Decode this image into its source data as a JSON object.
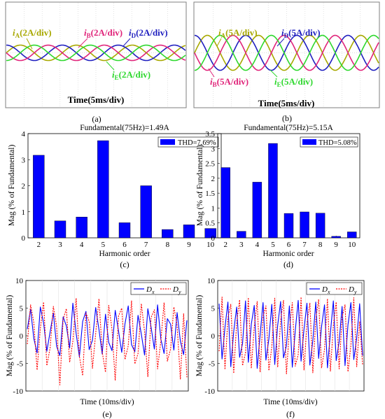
{
  "panels": {
    "a": {
      "caption": "(a)",
      "time_label": "Time(5ms/div)",
      "labels": [
        {
          "sym": "i",
          "sub": "A",
          "unit": "(2A/div)",
          "color": "#a8a800"
        },
        {
          "sym": "i",
          "sub": "B",
          "unit": "(2A/div)",
          "color": "#e0247a"
        },
        {
          "sym": "i",
          "sub": "D",
          "unit": "(2A/div)",
          "color": "#1f1fbf"
        },
        {
          "sym": "i",
          "sub": "E",
          "unit": "(2A/div)",
          "color": "#2ed82e"
        }
      ]
    },
    "b": {
      "caption": "(b)",
      "time_label": "Time(5ms/div)",
      "labels": [
        {
          "sym": "i",
          "sub": "A",
          "unit": "(5A/div)",
          "color": "#a8a800"
        },
        {
          "sym": "i",
          "sub": "D",
          "unit": "(5A/div)",
          "color": "#1f1fbf"
        },
        {
          "sym": "i",
          "sub": "B",
          "unit": "(5A/div)",
          "color": "#e0247a"
        },
        {
          "sym": "i",
          "sub": "E",
          "unit": "(5A/div)",
          "color": "#2ed82e"
        }
      ]
    },
    "c": {
      "caption": "(c)"
    },
    "d": {
      "caption": "(d)"
    },
    "e": {
      "caption": "(e)"
    },
    "f": {
      "caption": "(f)"
    }
  },
  "colors": {
    "bar": "#0000ff",
    "dx": "#0000ff",
    "dy": "#ff0000"
  },
  "chart_data": [
    {
      "id": "c",
      "type": "bar",
      "title": "Fundamental(75Hz)=1.49A",
      "legend": "THD=7.69%",
      "legend_position": "top-right",
      "xlabel": "Harmonic order",
      "ylabel": "Mag (% of Fundamental)",
      "categories": [
        "2",
        "3",
        "4",
        "5",
        "6",
        "7",
        "8",
        "9",
        "10"
      ],
      "values": [
        3.17,
        0.65,
        0.8,
        3.73,
        0.58,
        2.0,
        0.32,
        0.5,
        0.36
      ],
      "ylim": [
        0,
        4
      ],
      "yticks": [
        "0",
        "1",
        "2",
        "3",
        "4"
      ]
    },
    {
      "id": "d",
      "type": "bar",
      "title": "Fundamental(75Hz)=5.15A",
      "legend": "THD=5.08%",
      "legend_position": "top-right",
      "xlabel": "Harmonic order",
      "ylabel": "Mag (% of Fundamental)",
      "categories": [
        "2",
        "3",
        "4",
        "5",
        "6",
        "7",
        "8",
        "9",
        "10"
      ],
      "values": [
        2.36,
        0.22,
        1.87,
        3.17,
        0.82,
        0.87,
        0.83,
        0.05,
        0.2
      ],
      "ylim": [
        0,
        3.5
      ],
      "yticks": [
        "0",
        "0.5",
        "1",
        "1.5",
        "2",
        "2.5",
        "3",
        "3.5"
      ]
    },
    {
      "id": "e",
      "type": "line",
      "xlabel": "Time (10ms/div)",
      "ylabel": "Mag (% of Fundamental)",
      "ylim": [
        -10,
        10
      ],
      "yticks": [
        "-10",
        "-5",
        "0",
        "5",
        "10"
      ],
      "legend_position": "top-right",
      "series": [
        {
          "name": "x",
          "values": [
            1.2,
            4.8,
            -0.5,
            -3.1,
            5.2,
            2.3,
            -2.8,
            0.7,
            4.1,
            -1.9,
            -3.6,
            3.4,
            1.8,
            -2.2,
            5.9,
            0.4,
            -3.8,
            2.6,
            4.4,
            -2.5,
            -0.8,
            5.1,
            1.1,
            -3.3,
            3.9,
            -1.2,
            -2.7,
            4.6,
            0.9,
            -3.0,
            2.2,
            5.4,
            -1.6,
            -2.9,
            3.7,
            0.3,
            -3.5,
            4.9,
            1.6,
            -2.4,
            5.6,
            -0.6,
            -3.2,
            3.1,
            2.1,
            -2.6,
            4.2,
            -1.0,
            -3.4,
            2.8
          ]
        },
        {
          "name": "y",
          "values": [
            -1.5,
            5.6,
            2.4,
            -6.2,
            1.3,
            6.1,
            -5.4,
            -2.2,
            5.3,
            1.7,
            -8.9,
            3.0,
            4.9,
            -4.8,
            -1.0,
            6.8,
            -3.7,
            -7.2,
            4.1,
            2.6,
            -5.9,
            0.4,
            6.7,
            -2.9,
            -6.6,
            5.5,
            1.2,
            -8.1,
            3.6,
            5.0,
            -4.3,
            -1.8,
            6.3,
            -5.1,
            -3.2,
            5.8,
            0.8,
            -7.4,
            3.3,
            4.7,
            -6.0,
            -0.9,
            6.0,
            -4.6,
            -2.4,
            5.2,
            1.9,
            -7.9,
            4.0,
            -7.5
          ]
        }
      ]
    },
    {
      "id": "f",
      "type": "line",
      "xlabel": "Time (10ms/div)",
      "ylabel": "Mag (% of Fundamental)",
      "ylim": [
        -10,
        10
      ],
      "yticks": [
        "-10",
        "-5",
        "0",
        "5",
        "10"
      ],
      "legend_position": "top-right",
      "series": [
        {
          "name": "x",
          "values": [
            5.8,
            -4.2,
            1.5,
            6.1,
            -5.6,
            0.8,
            5.2,
            -3.9,
            -1.4,
            6.3,
            -4.8,
            2.1,
            5.5,
            -5.9,
            0.2,
            6.0,
            -4.4,
            -0.6,
            5.7,
            -5.2,
            1.9,
            6.2,
            -4.0,
            -1.8,
            5.4,
            -5.7,
            0.9,
            6.4,
            -4.6,
            1.2,
            5.9,
            -5.3,
            -0.9,
            6.1,
            -4.1,
            1.7,
            5.6,
            -5.8,
            0.5,
            6.3,
            -4.5,
            -1.1,
            5.3,
            -5.4,
            2.0,
            6.0,
            -4.3,
            -0.4,
            5.8,
            -3.6
          ]
        },
        {
          "name": "y",
          "values": [
            -2.8,
            7.0,
            -6.1,
            3.2,
            5.7,
            -6.8,
            2.4,
            6.5,
            -5.4,
            -3.1,
            6.9,
            -5.9,
            1.6,
            6.2,
            -6.6,
            3.5,
            5.4,
            -6.3,
            -2.0,
            6.8,
            -5.7,
            2.8,
            6.4,
            -6.9,
            1.1,
            6.0,
            -5.5,
            -3.4,
            7.0,
            -6.2,
            2.2,
            5.9,
            -6.7,
            3.0,
            6.6,
            -5.8,
            -2.5,
            6.7,
            -6.4,
            1.8,
            6.1,
            -6.0,
            3.3,
            5.6,
            -6.5,
            -1.7,
            6.9,
            -5.6,
            2.6,
            -5.2
          ]
        }
      ]
    }
  ]
}
